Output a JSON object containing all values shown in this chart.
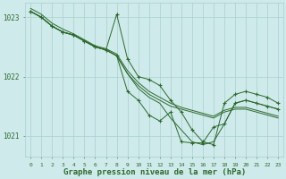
{
  "background_color": "#ceeaea",
  "grid_color": "#aacfcf",
  "line_color": "#2d6a2d",
  "xlabel": "Graphe pression niveau de la mer (hPa)",
  "xlabel_fontsize": 6.5,
  "ylabel_ticks": [
    1021,
    1022,
    1023
  ],
  "xlim": [
    -0.5,
    23.5
  ],
  "ylim": [
    1020.65,
    1023.25
  ],
  "xticks": [
    0,
    1,
    2,
    3,
    4,
    5,
    6,
    7,
    8,
    9,
    10,
    11,
    12,
    13,
    14,
    15,
    16,
    17,
    18,
    19,
    20,
    21,
    22,
    23
  ],
  "series": [
    {
      "x": [
        0,
        1,
        2,
        3,
        4,
        5,
        6,
        7,
        8,
        9,
        10,
        11,
        12,
        13,
        14,
        15,
        16,
        17,
        18,
        19,
        20,
        21,
        22,
        23
      ],
      "y": [
        1023.1,
        1023.0,
        1022.85,
        1022.75,
        1022.7,
        1022.6,
        1022.5,
        1022.45,
        1022.35,
        1022.05,
        1021.8,
        1021.65,
        1021.55,
        1021.3,
        1021.1,
        1020.9,
        1020.85,
        1020.9,
        1021.2,
        1021.55,
        1021.6,
        1021.55,
        1021.5,
        1021.45
      ],
      "marker": "None",
      "lw": 0.7
    },
    {
      "x": [
        0,
        1,
        2,
        3,
        4,
        5,
        6,
        7,
        8,
        9,
        10,
        11,
        12,
        13,
        14,
        15,
        16,
        17,
        18,
        19,
        20,
        21,
        22,
        23
      ],
      "y": [
        1023.1,
        1023.0,
        1022.85,
        1022.75,
        1022.7,
        1022.6,
        1022.5,
        1022.45,
        1023.05,
        1022.3,
        1022.0,
        1021.95,
        1021.85,
        1021.6,
        1021.4,
        1021.1,
        1020.9,
        1020.85,
        1021.55,
        1021.7,
        1021.75,
        1021.7,
        1021.65,
        1021.55
      ],
      "marker": "+",
      "lw": 0.7
    },
    {
      "x": [
        0,
        1,
        2,
        3,
        4,
        5,
        6,
        7,
        8,
        9,
        10,
        11,
        12,
        13,
        14,
        15,
        16,
        17,
        18,
        19,
        20,
        21,
        22,
        23
      ],
      "y": [
        1023.1,
        1023.0,
        1022.85,
        1022.75,
        1022.7,
        1022.6,
        1022.5,
        1022.45,
        1022.35,
        1022.05,
        1021.85,
        1021.7,
        1021.6,
        1021.5,
        1021.45,
        1021.4,
        1021.35,
        1021.3,
        1021.4,
        1021.45,
        1021.45,
        1021.4,
        1021.35,
        1021.3
      ],
      "marker": "None",
      "lw": 0.7
    },
    {
      "x": [
        0,
        1,
        2,
        3,
        4,
        5,
        6,
        7,
        8,
        9,
        10,
        11,
        12,
        13,
        14,
        15,
        16,
        17,
        18,
        19,
        20,
        21,
        22,
        23
      ],
      "y": [
        1023.15,
        1023.05,
        1022.9,
        1022.8,
        1022.72,
        1022.62,
        1022.52,
        1022.47,
        1022.38,
        1022.1,
        1021.9,
        1021.75,
        1021.65,
        1021.55,
        1021.48,
        1021.43,
        1021.38,
        1021.33,
        1021.43,
        1021.48,
        1021.48,
        1021.43,
        1021.38,
        1021.33
      ],
      "marker": "None",
      "lw": 0.7
    },
    {
      "x": [
        0,
        1,
        2,
        3,
        4,
        5,
        6,
        7,
        8,
        9,
        10,
        11,
        12,
        13,
        14,
        15,
        16,
        17,
        18,
        19,
        20,
        21,
        22,
        23
      ],
      "y": [
        1023.1,
        1023.0,
        1022.85,
        1022.75,
        1022.7,
        1022.6,
        1022.5,
        1022.45,
        1022.35,
        1021.75,
        1021.6,
        1021.35,
        1021.25,
        1021.4,
        1020.9,
        1020.88,
        1020.88,
        1021.15,
        1021.2,
        1021.55,
        1021.6,
        1021.55,
        1021.5,
        1021.45
      ],
      "marker": "+",
      "lw": 0.7
    }
  ]
}
